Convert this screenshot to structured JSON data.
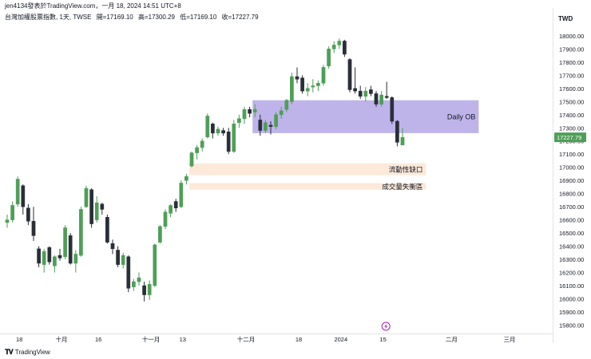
{
  "header": {
    "author_line": "jen4134發表於TradingView.com，一月 18, 2024 14:51 UTC+8"
  },
  "symbol": {
    "name": "台灣加權股票指數, 1天, TWSE",
    "open": "開=17169.10",
    "high": "高=17300.29",
    "low": "低=17169.10",
    "close": "收=17227.79"
  },
  "currency_label": "TWD",
  "footer": {
    "brand": "TradingView"
  },
  "colors": {
    "up": "#4f9e57",
    "down": "#2a2e39",
    "ob_zone": "#b4a7e6",
    "gap_zone": "#fbe3cf",
    "price_tag": "#4f9e57"
  },
  "chart_data": {
    "type": "candlestick",
    "y_axis": {
      "range": [
        15750,
        18150
      ],
      "ticks": [
        15800,
        15900,
        16000,
        16100,
        16200,
        16300,
        16400,
        16500,
        16600,
        16700,
        16800,
        16900,
        17000,
        17100,
        17200,
        17300,
        17400,
        17500,
        17600,
        17700,
        17800,
        17900,
        18000
      ],
      "tick_labels": [
        "15800.00",
        "15900.00",
        "16000.00",
        "16100.00",
        "16200.00",
        "16300.00",
        "16400.00",
        "16500.00",
        "16600.00",
        "16700.00",
        "16800.00",
        "16900.00",
        "17000.00",
        "17100.00",
        "17200.00",
        "17300.00",
        "17400.00",
        "17500.00",
        "17600.00",
        "17700.00",
        "17800.00",
        "17900.00",
        "18000.00"
      ]
    },
    "x_axis": {
      "ticks": [
        {
          "label": "18",
          "index": 2
        },
        {
          "label": "十月",
          "index": 10
        },
        {
          "label": "16",
          "index": 17
        },
        {
          "label": "十一月",
          "index": 27
        },
        {
          "label": "13",
          "index": 33
        },
        {
          "label": "十二月",
          "index": 45
        },
        {
          "label": "18",
          "index": 55
        },
        {
          "label": "2024",
          "index": 63
        },
        {
          "label": "15",
          "index": 71
        },
        {
          "label": "二月",
          "index": 84
        },
        {
          "label": "三月",
          "index": 95
        }
      ]
    },
    "last_price_label": "17227.79",
    "last_price": 17227.79,
    "candles": [
      {
        "o": 16580,
        "h": 16640,
        "l": 16540,
        "c": 16600
      },
      {
        "o": 16600,
        "h": 16740,
        "l": 16580,
        "c": 16710
      },
      {
        "o": 16720,
        "h": 16930,
        "l": 16700,
        "c": 16910
      },
      {
        "o": 16860,
        "h": 16870,
        "l": 16640,
        "c": 16700
      },
      {
        "o": 16690,
        "h": 16720,
        "l": 16560,
        "c": 16590
      },
      {
        "o": 16590,
        "h": 16700,
        "l": 16440,
        "c": 16480
      },
      {
        "o": 16380,
        "h": 16400,
        "l": 16240,
        "c": 16270
      },
      {
        "o": 16260,
        "h": 16380,
        "l": 16200,
        "c": 16360
      },
      {
        "o": 16390,
        "h": 16400,
        "l": 16260,
        "c": 16280
      },
      {
        "o": 16250,
        "h": 16330,
        "l": 16200,
        "c": 16320
      },
      {
        "o": 16330,
        "h": 16380,
        "l": 16290,
        "c": 16310
      },
      {
        "o": 16320,
        "h": 16560,
        "l": 16300,
        "c": 16540
      },
      {
        "o": 16480,
        "h": 16500,
        "l": 16260,
        "c": 16270
      },
      {
        "o": 16270,
        "h": 16370,
        "l": 16200,
        "c": 16340
      },
      {
        "o": 16330,
        "h": 16700,
        "l": 16320,
        "c": 16680
      },
      {
        "o": 16700,
        "h": 16860,
        "l": 16690,
        "c": 16840
      },
      {
        "o": 16830,
        "h": 16840,
        "l": 16540,
        "c": 16570
      },
      {
        "o": 16600,
        "h": 16780,
        "l": 16580,
        "c": 16730
      },
      {
        "o": 16720,
        "h": 16730,
        "l": 16640,
        "c": 16680
      },
      {
        "o": 16620,
        "h": 16640,
        "l": 16420,
        "c": 16430
      },
      {
        "o": 16420,
        "h": 16450,
        "l": 16340,
        "c": 16380
      },
      {
        "o": 16370,
        "h": 16400,
        "l": 16240,
        "c": 16260
      },
      {
        "o": 16260,
        "h": 16350,
        "l": 16230,
        "c": 16330
      },
      {
        "o": 16320,
        "h": 16330,
        "l": 16050,
        "c": 16080
      },
      {
        "o": 16090,
        "h": 16150,
        "l": 16060,
        "c": 16130
      },
      {
        "o": 16130,
        "h": 16200,
        "l": 16100,
        "c": 16160
      },
      {
        "o": 16100,
        "h": 16130,
        "l": 15980,
        "c": 16030
      },
      {
        "o": 16030,
        "h": 16140,
        "l": 15990,
        "c": 16110
      },
      {
        "o": 16100,
        "h": 16420,
        "l": 16090,
        "c": 16410
      },
      {
        "o": 16430,
        "h": 16560,
        "l": 16420,
        "c": 16550
      },
      {
        "o": 16550,
        "h": 16680,
        "l": 16530,
        "c": 16660
      },
      {
        "o": 16650,
        "h": 16720,
        "l": 16620,
        "c": 16710
      },
      {
        "o": 16740,
        "h": 16760,
        "l": 16660,
        "c": 16690
      },
      {
        "o": 16700,
        "h": 16900,
        "l": 16690,
        "c": 16880
      },
      {
        "o": 16900,
        "h": 16950,
        "l": 16870,
        "c": 16930
      },
      {
        "o": 17010,
        "h": 17120,
        "l": 17000,
        "c": 17110
      },
      {
        "o": 17110,
        "h": 17170,
        "l": 17060,
        "c": 17150
      },
      {
        "o": 17150,
        "h": 17220,
        "l": 17120,
        "c": 17200
      },
      {
        "o": 17230,
        "h": 17410,
        "l": 17220,
        "c": 17390
      },
      {
        "o": 17330,
        "h": 17340,
        "l": 17220,
        "c": 17260
      },
      {
        "o": 17260,
        "h": 17310,
        "l": 17240,
        "c": 17290
      },
      {
        "o": 17280,
        "h": 17300,
        "l": 17240,
        "c": 17260
      },
      {
        "o": 17270,
        "h": 17300,
        "l": 17100,
        "c": 17120
      },
      {
        "o": 17120,
        "h": 17360,
        "l": 17110,
        "c": 17330
      },
      {
        "o": 17340,
        "h": 17400,
        "l": 17300,
        "c": 17370
      },
      {
        "o": 17370,
        "h": 17460,
        "l": 17330,
        "c": 17440
      },
      {
        "o": 17440,
        "h": 17460,
        "l": 17380,
        "c": 17410
      },
      {
        "o": 17420,
        "h": 17480,
        "l": 17380,
        "c": 17440
      },
      {
        "o": 17360,
        "h": 17400,
        "l": 17240,
        "c": 17280
      },
      {
        "o": 17280,
        "h": 17360,
        "l": 17260,
        "c": 17340
      },
      {
        "o": 17320,
        "h": 17350,
        "l": 17250,
        "c": 17310
      },
      {
        "o": 17310,
        "h": 17420,
        "l": 17290,
        "c": 17400
      },
      {
        "o": 17400,
        "h": 17460,
        "l": 17370,
        "c": 17430
      },
      {
        "o": 17440,
        "h": 17520,
        "l": 17420,
        "c": 17510
      },
      {
        "o": 17500,
        "h": 17720,
        "l": 17480,
        "c": 17690
      },
      {
        "o": 17690,
        "h": 17760,
        "l": 17640,
        "c": 17670
      },
      {
        "o": 17680,
        "h": 17700,
        "l": 17560,
        "c": 17580
      },
      {
        "o": 17580,
        "h": 17640,
        "l": 17540,
        "c": 17600
      },
      {
        "o": 17610,
        "h": 17670,
        "l": 17570,
        "c": 17620
      },
      {
        "o": 17620,
        "h": 17660,
        "l": 17580,
        "c": 17640
      },
      {
        "o": 17640,
        "h": 17780,
        "l": 17620,
        "c": 17760
      },
      {
        "o": 17770,
        "h": 17920,
        "l": 17750,
        "c": 17900
      },
      {
        "o": 17900,
        "h": 17960,
        "l": 17870,
        "c": 17930
      },
      {
        "o": 17930,
        "h": 17980,
        "l": 17900,
        "c": 17960
      },
      {
        "o": 17960,
        "h": 17970,
        "l": 17840,
        "c": 17860
      },
      {
        "o": 17820,
        "h": 17830,
        "l": 17570,
        "c": 17590
      },
      {
        "o": 17600,
        "h": 17760,
        "l": 17560,
        "c": 17580
      },
      {
        "o": 17580,
        "h": 17620,
        "l": 17520,
        "c": 17540
      },
      {
        "o": 17540,
        "h": 17610,
        "l": 17500,
        "c": 17580
      },
      {
        "o": 17590,
        "h": 17620,
        "l": 17540,
        "c": 17560
      },
      {
        "o": 17560,
        "h": 17580,
        "l": 17460,
        "c": 17480
      },
      {
        "o": 17480,
        "h": 17580,
        "l": 17460,
        "c": 17550
      },
      {
        "o": 17540,
        "h": 17650,
        "l": 17520,
        "c": 17530
      },
      {
        "o": 17530,
        "h": 17540,
        "l": 17330,
        "c": 17350
      },
      {
        "o": 17350,
        "h": 17360,
        "l": 17160,
        "c": 17190
      },
      {
        "o": 17169.1,
        "h": 17300.29,
        "l": 17169.1,
        "c": 17227.79
      }
    ],
    "zones": [
      {
        "label": "Daily OB",
        "from_index": 47,
        "to_index": 89,
        "top": 17510,
        "bottom": 17260,
        "color": "#b4a7e6"
      },
      {
        "label": "流動性缺口",
        "from_index": 35,
        "to_index": 79,
        "top": 17030,
        "bottom": 16940,
        "color": "#fbe3cf"
      },
      {
        "label": "成交量失衡區",
        "from_index": 35,
        "to_index": 79,
        "top": 16880,
        "bottom": 16830,
        "color": "#fbe3cf"
      }
    ]
  }
}
